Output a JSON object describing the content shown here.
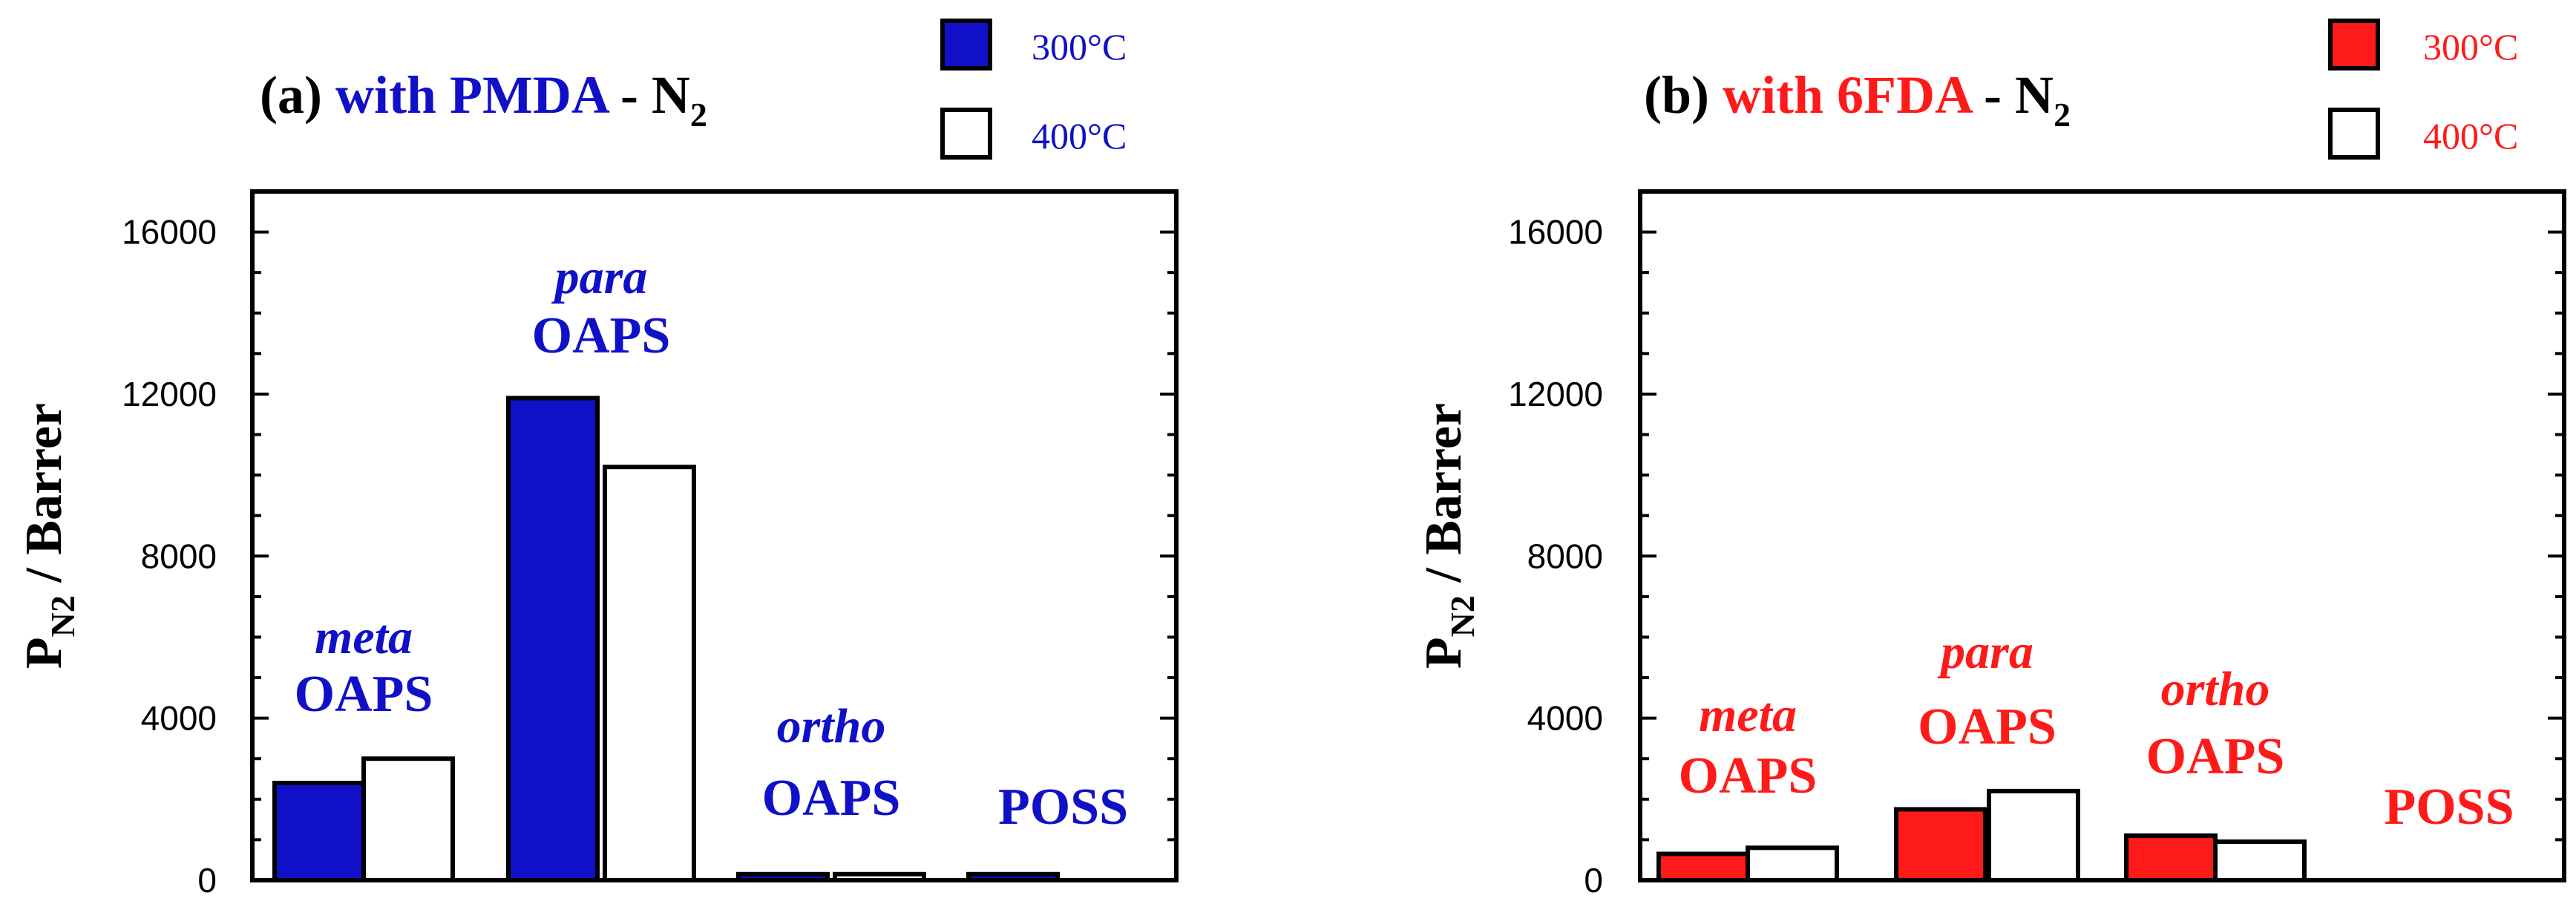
{
  "chart_data": [
    {
      "type": "bar",
      "panel_label": "(a)",
      "title_parts": [
        "with PMDA",
        "-",
        "N",
        "2"
      ],
      "color": "#1010c8",
      "ylabel_parts": [
        "P",
        "N2",
        "/ Barrer"
      ],
      "ylim": [
        0,
        17000
      ],
      "yticks": [
        0,
        4000,
        8000,
        12000,
        16000
      ],
      "ytick_labels": [
        "0",
        "4000",
        "8000",
        "12000",
        "16000"
      ],
      "legend": {
        "position": "top-right",
        "entries": [
          "300°C",
          "400°C"
        ]
      },
      "categories": [
        {
          "line1": "meta",
          "line2": "OAPS"
        },
        {
          "line1": "para",
          "line2": "OAPS"
        },
        {
          "line1": "ortho",
          "line2": "OAPS"
        },
        {
          "line1": "",
          "line2": "POSS"
        }
      ],
      "series": [
        {
          "name": "300°C",
          "values": [
            2400,
            11900,
            150,
            150
          ]
        },
        {
          "name": "400°C",
          "values": [
            3000,
            10200,
            150,
            0
          ]
        }
      ]
    },
    {
      "type": "bar",
      "panel_label": "(b)",
      "title_parts": [
        "with 6FDA",
        "-",
        "N",
        "2"
      ],
      "color": "#ff1a1a",
      "ylabel_parts": [
        "P",
        "N2",
        "/ Barrer"
      ],
      "ylim": [
        0,
        17000
      ],
      "yticks": [
        0,
        4000,
        8000,
        12000,
        16000
      ],
      "ytick_labels": [
        "0",
        "4000",
        "8000",
        "12000",
        "16000"
      ],
      "legend": {
        "position": "top-right",
        "entries": [
          "300°C",
          "400°C"
        ]
      },
      "categories": [
        {
          "line1": "meta",
          "line2": "OAPS"
        },
        {
          "line1": "para",
          "line2": "OAPS"
        },
        {
          "line1": "ortho",
          "line2": "OAPS"
        },
        {
          "line1": "",
          "line2": "POSS"
        }
      ],
      "series": [
        {
          "name": "300°C",
          "values": [
            650,
            1750,
            1100,
            0
          ]
        },
        {
          "name": "400°C",
          "values": [
            800,
            2200,
            950,
            0
          ]
        }
      ]
    }
  ]
}
